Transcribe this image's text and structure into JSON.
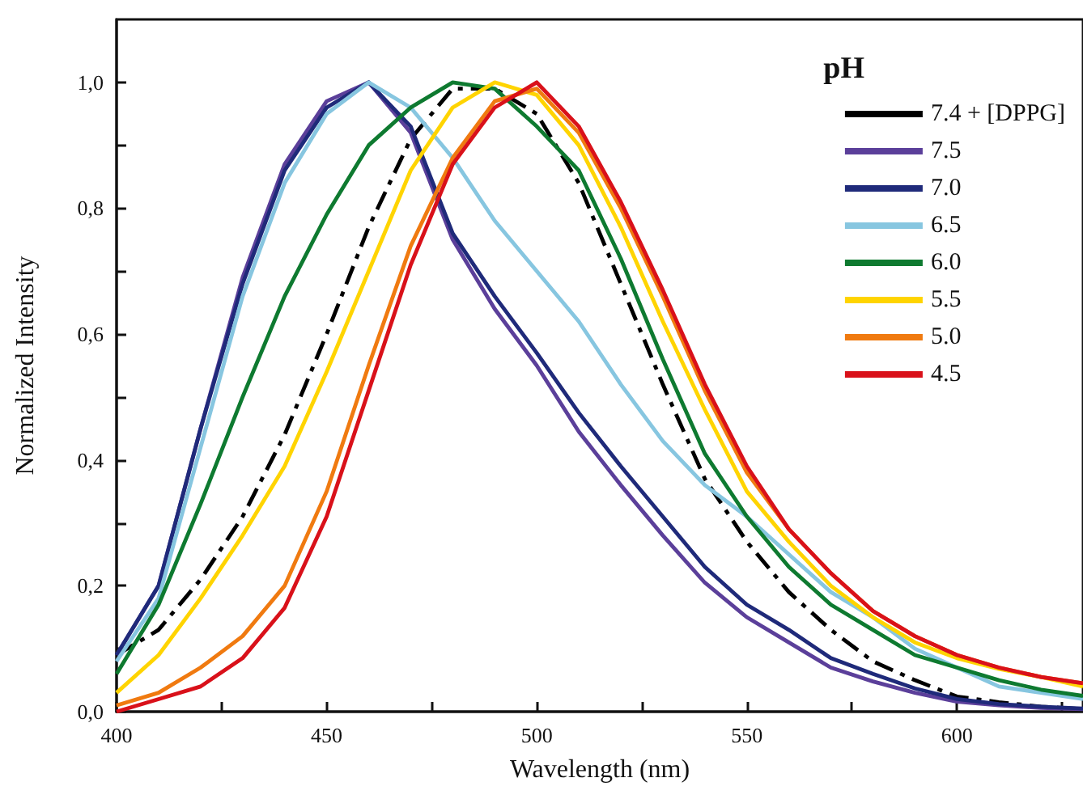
{
  "chart_data": {
    "type": "line",
    "xlabel": "Wavelength (nm)",
    "ylabel": "Normalized Intensity",
    "legend_title": "pH",
    "legend": "top right",
    "grid": false,
    "line_style": "solid",
    "x": [
      400,
      410,
      420,
      430,
      440,
      450,
      460,
      470,
      480,
      490,
      500,
      510,
      520,
      530,
      540,
      550,
      560,
      570,
      580,
      590,
      600,
      610,
      620,
      630
    ],
    "xlim": [
      400,
      630
    ],
    "xticks": [
      400,
      {
        "value": 425,
        "label": null
      },
      450,
      {
        "value": 475,
        "label": null
      },
      500,
      {
        "value": 525,
        "label": null
      },
      550,
      {
        "value": 575,
        "label": null
      },
      600,
      {
        "value": 625,
        "label": null
      }
    ],
    "ylim": [
      0,
      1.1
    ],
    "yticks": [
      {
        "value": 0,
        "label": "0,0"
      },
      {
        "value": 0.1,
        "label": null
      },
      {
        "value": 0.2,
        "label": "0,2"
      },
      {
        "value": 0.3,
        "label": null
      },
      {
        "value": 0.4,
        "label": "0,4"
      },
      {
        "value": 0.5,
        "label": null
      },
      {
        "value": 0.6,
        "label": "0,6"
      },
      {
        "value": 0.7,
        "label": null
      },
      {
        "value": 0.8,
        "label": "0,8"
      },
      {
        "value": 0.9,
        "label": null
      },
      {
        "value": 1.0,
        "label": "1,0"
      }
    ],
    "series": [
      {
        "name": "7.4 + [DPPG]",
        "color": "#000000",
        "line_style": "dashed",
        "values": [
          0.09,
          0.13,
          0.21,
          0.31,
          0.44,
          0.6,
          0.77,
          0.91,
          0.99,
          0.99,
          0.95,
          0.84,
          0.68,
          0.52,
          0.37,
          0.27,
          0.19,
          0.13,
          0.08,
          0.05,
          0.024,
          0.015,
          0.008,
          0.004
        ]
      },
      {
        "name": "7.5",
        "color": "#5b3f9a",
        "values": [
          0.09,
          0.2,
          0.45,
          0.69,
          0.87,
          0.97,
          1.0,
          0.92,
          0.75,
          0.64,
          0.55,
          0.445,
          0.36,
          0.28,
          0.205,
          0.15,
          0.11,
          0.07,
          0.048,
          0.03,
          0.016,
          0.01,
          0.006,
          0.004
        ]
      },
      {
        "name": "7.0",
        "color": "#1f2a7a",
        "values": [
          0.09,
          0.2,
          0.45,
          0.68,
          0.86,
          0.96,
          1.0,
          0.93,
          0.76,
          0.66,
          0.57,
          0.475,
          0.39,
          0.31,
          0.23,
          0.17,
          0.13,
          0.085,
          0.06,
          0.037,
          0.02,
          0.012,
          0.008,
          0.005
        ]
      },
      {
        "name": "6.5",
        "color": "#87c6e0",
        "values": [
          0.08,
          0.18,
          0.42,
          0.66,
          0.84,
          0.95,
          1.0,
          0.96,
          0.88,
          0.78,
          0.7,
          0.62,
          0.52,
          0.43,
          0.36,
          0.31,
          0.25,
          0.19,
          0.15,
          0.1,
          0.07,
          0.04,
          0.03,
          0.02
        ]
      },
      {
        "name": "6.0",
        "color": "#0e7a30",
        "values": [
          0.06,
          0.17,
          0.33,
          0.5,
          0.66,
          0.79,
          0.9,
          0.96,
          1.0,
          0.99,
          0.93,
          0.86,
          0.72,
          0.56,
          0.41,
          0.31,
          0.23,
          0.17,
          0.13,
          0.09,
          0.07,
          0.05,
          0.035,
          0.025
        ]
      },
      {
        "name": "5.5",
        "color": "#ffd400",
        "values": [
          0.03,
          0.09,
          0.18,
          0.28,
          0.39,
          0.54,
          0.7,
          0.86,
          0.96,
          1.0,
          0.98,
          0.9,
          0.77,
          0.62,
          0.48,
          0.35,
          0.27,
          0.2,
          0.15,
          0.11,
          0.085,
          0.068,
          0.055,
          0.04
        ]
      },
      {
        "name": "5.0",
        "color": "#f07a10",
        "values": [
          0.01,
          0.03,
          0.07,
          0.12,
          0.2,
          0.35,
          0.55,
          0.74,
          0.88,
          0.97,
          0.99,
          0.92,
          0.8,
          0.66,
          0.51,
          0.38,
          0.29,
          0.22,
          0.16,
          0.12,
          0.09,
          0.07,
          0.055,
          0.045
        ]
      },
      {
        "name": "4.5",
        "color": "#d9111a",
        "values": [
          0.0,
          0.02,
          0.04,
          0.085,
          0.165,
          0.31,
          0.51,
          0.71,
          0.87,
          0.96,
          1.0,
          0.93,
          0.81,
          0.67,
          0.52,
          0.39,
          0.29,
          0.22,
          0.16,
          0.12,
          0.09,
          0.07,
          0.055,
          0.045
        ]
      }
    ]
  }
}
